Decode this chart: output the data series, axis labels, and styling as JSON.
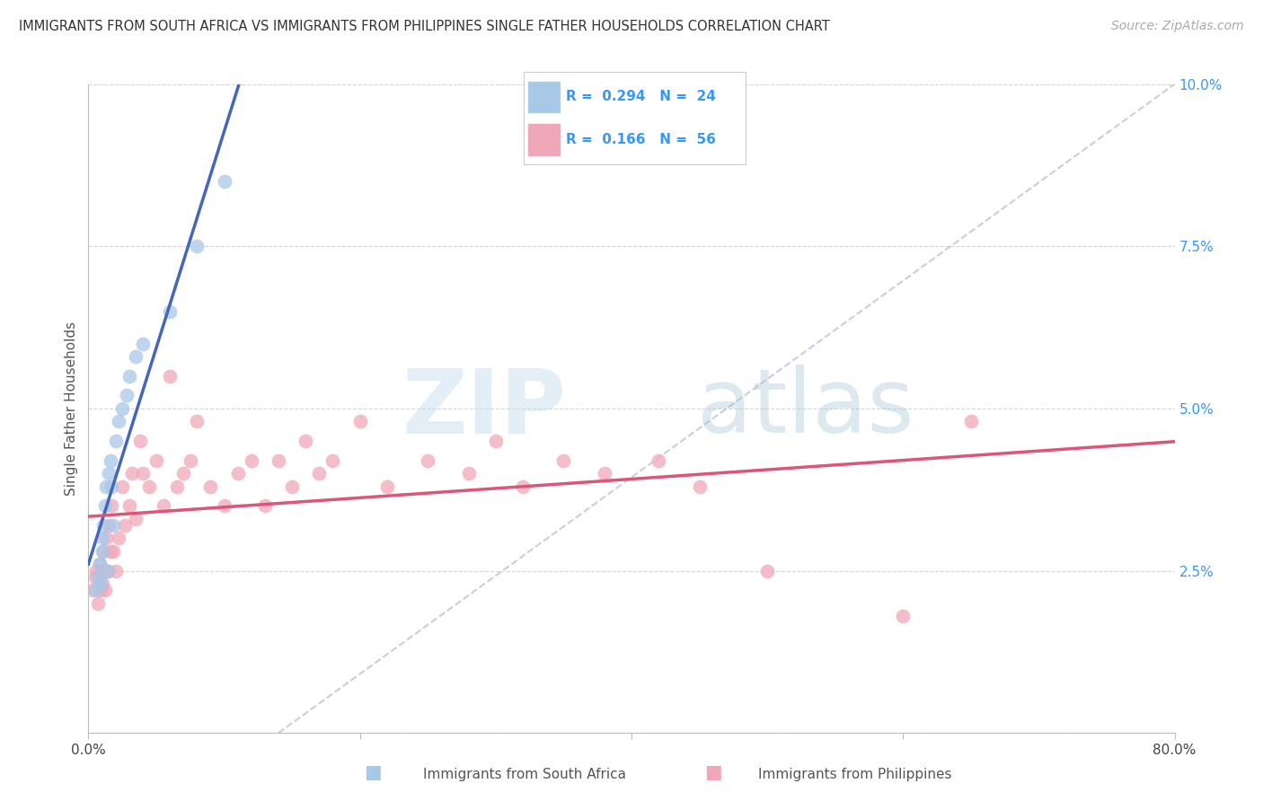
{
  "title": "IMMIGRANTS FROM SOUTH AFRICA VS IMMIGRANTS FROM PHILIPPINES SINGLE FATHER HOUSEHOLDS CORRELATION CHART",
  "source": "Source: ZipAtlas.com",
  "ylabel": "Single Father Households",
  "xmin": 0.0,
  "xmax": 0.8,
  "ymin": 0.0,
  "ymax": 0.1,
  "yticks": [
    0.0,
    0.025,
    0.05,
    0.075,
    0.1
  ],
  "xticks": [
    0.0,
    0.2,
    0.4,
    0.6,
    0.8
  ],
  "legend1_r": "0.294",
  "legend1_n": "24",
  "legend2_r": "0.166",
  "legend2_n": "56",
  "legend1_label": "Immigrants from South Africa",
  "legend2_label": "Immigrants from Philippines",
  "color_blue": "#a8c8e8",
  "color_pink": "#f0a8b8",
  "color_line_blue": "#4466bb",
  "color_line_pink": "#dd5577",
  "color_legend_text": "#3399ff",
  "watermark_zip": "ZIP",
  "watermark_atlas": "atlas",
  "sa_x": [
    0.005,
    0.007,
    0.008,
    0.009,
    0.01,
    0.01,
    0.011,
    0.012,
    0.013,
    0.014,
    0.015,
    0.016,
    0.017,
    0.018,
    0.02,
    0.022,
    0.025,
    0.028,
    0.03,
    0.035,
    0.04,
    0.06,
    0.08,
    0.1
  ],
  "sa_y": [
    0.022,
    0.024,
    0.026,
    0.023,
    0.028,
    0.03,
    0.032,
    0.035,
    0.038,
    0.025,
    0.04,
    0.042,
    0.038,
    0.032,
    0.045,
    0.048,
    0.05,
    0.052,
    0.055,
    0.058,
    0.06,
    0.065,
    0.075,
    0.085
  ],
  "ph_x": [
    0.003,
    0.005,
    0.006,
    0.007,
    0.008,
    0.009,
    0.01,
    0.01,
    0.011,
    0.012,
    0.013,
    0.014,
    0.015,
    0.016,
    0.017,
    0.018,
    0.02,
    0.022,
    0.025,
    0.027,
    0.03,
    0.032,
    0.035,
    0.038,
    0.04,
    0.045,
    0.05,
    0.055,
    0.06,
    0.065,
    0.07,
    0.075,
    0.08,
    0.09,
    0.1,
    0.11,
    0.12,
    0.13,
    0.14,
    0.15,
    0.16,
    0.17,
    0.18,
    0.2,
    0.22,
    0.25,
    0.28,
    0.3,
    0.32,
    0.35,
    0.38,
    0.42,
    0.45,
    0.5,
    0.6,
    0.65
  ],
  "ph_y": [
    0.022,
    0.024,
    0.025,
    0.02,
    0.026,
    0.022,
    0.023,
    0.025,
    0.028,
    0.022,
    0.03,
    0.025,
    0.032,
    0.028,
    0.035,
    0.028,
    0.025,
    0.03,
    0.038,
    0.032,
    0.035,
    0.04,
    0.033,
    0.045,
    0.04,
    0.038,
    0.042,
    0.035,
    0.055,
    0.038,
    0.04,
    0.042,
    0.048,
    0.038,
    0.035,
    0.04,
    0.042,
    0.035,
    0.042,
    0.038,
    0.045,
    0.04,
    0.042,
    0.048,
    0.038,
    0.042,
    0.04,
    0.045,
    0.038,
    0.042,
    0.04,
    0.042,
    0.038,
    0.025,
    0.018,
    0.048
  ],
  "dash_line_x": [
    0.14,
    0.8
  ],
  "dash_line_y": [
    0.0,
    0.1
  ]
}
